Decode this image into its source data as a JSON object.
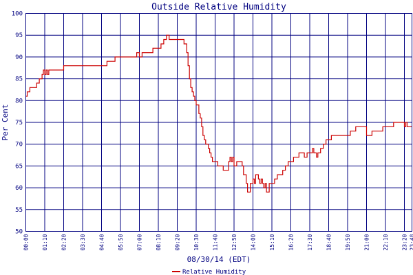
{
  "chart_data": {
    "type": "line",
    "title": "Outside Relative Humidity",
    "xlabel": "08/30/14 (EDT)",
    "ylabel": "Per Cent",
    "ylim": [
      50,
      100
    ],
    "yticks": [
      50,
      55,
      60,
      65,
      70,
      75,
      80,
      85,
      90,
      95,
      100
    ],
    "xlim": [
      0,
      1428
    ],
    "x_unit": "minutes from 00:00",
    "xticks": [
      "00:00",
      "01:10",
      "02:20",
      "03:30",
      "04:40",
      "05:50",
      "07:00",
      "08:10",
      "09:20",
      "10:30",
      "11:40",
      "12:50",
      "14:00",
      "15:10",
      "16:20",
      "17:30",
      "18:40",
      "19:50",
      "21:00",
      "22:10",
      "23:20",
      "23:48"
    ],
    "grid": true,
    "legend_position": "bottom-center",
    "series": [
      {
        "name": "Relative Humidity",
        "color": "#cc0000",
        "x": [
          0,
          5,
          10,
          15,
          20,
          25,
          30,
          40,
          50,
          60,
          65,
          70,
          75,
          80,
          85,
          90,
          100,
          110,
          120,
          140,
          160,
          170,
          180,
          190,
          200,
          230,
          260,
          300,
          320,
          330,
          335,
          345,
          360,
          380,
          400,
          410,
          420,
          425,
          430,
          440,
          460,
          470,
          480,
          500,
          510,
          520,
          530,
          535,
          540,
          550,
          560,
          570,
          580,
          585,
          590,
          595,
          600,
          605,
          610,
          615,
          620,
          625,
          630,
          635,
          640,
          645,
          650,
          655,
          660,
          665,
          670,
          675,
          680,
          685,
          690,
          700,
          710,
          720,
          730,
          740,
          750,
          755,
          760,
          765,
          770,
          780,
          790,
          800,
          805,
          810,
          815,
          820,
          830,
          840,
          845,
          850,
          860,
          865,
          870,
          875,
          880,
          885,
          890,
          900,
          910,
          920,
          930,
          940,
          950,
          960,
          970,
          980,
          990,
          1000,
          1010,
          1020,
          1030,
          1040,
          1050,
          1060,
          1065,
          1070,
          1075,
          1080,
          1090,
          1100,
          1110,
          1120,
          1130,
          1140,
          1160,
          1180,
          1200,
          1220,
          1240,
          1260,
          1280,
          1300,
          1320,
          1340,
          1360,
          1380,
          1395,
          1400,
          1405,
          1410,
          1428
        ],
        "values": [
          81,
          82,
          82,
          83,
          83,
          83,
          83,
          84,
          85,
          86,
          87,
          86,
          87,
          86,
          87,
          87,
          87,
          87,
          87,
          88,
          88,
          88,
          88,
          88,
          88,
          88,
          88,
          89,
          89,
          90,
          90,
          90,
          90,
          90,
          90,
          91,
          90,
          90,
          91,
          91,
          91,
          92,
          92,
          93,
          94,
          95,
          94,
          94,
          94,
          94,
          94,
          94,
          94,
          93,
          93,
          91,
          88,
          85,
          83,
          82,
          81,
          80,
          79,
          79,
          77,
          76,
          74,
          72,
          71,
          70,
          70,
          69,
          68,
          67,
          66,
          66,
          65,
          65,
          64,
          64,
          66,
          67,
          66,
          67,
          65,
          66,
          66,
          65,
          63,
          63,
          61,
          59,
          61,
          62,
          61,
          63,
          62,
          61,
          62,
          61,
          60,
          61,
          59,
          61,
          61,
          62,
          63,
          63,
          64,
          65,
          66,
          66,
          67,
          67,
          68,
          68,
          67,
          68,
          68,
          69,
          68,
          68,
          67,
          68,
          69,
          70,
          71,
          71,
          72,
          72,
          72,
          72,
          73,
          74,
          74,
          72,
          73,
          73,
          74,
          74,
          75,
          75,
          75,
          74,
          75,
          74,
          74
        ]
      }
    ]
  }
}
